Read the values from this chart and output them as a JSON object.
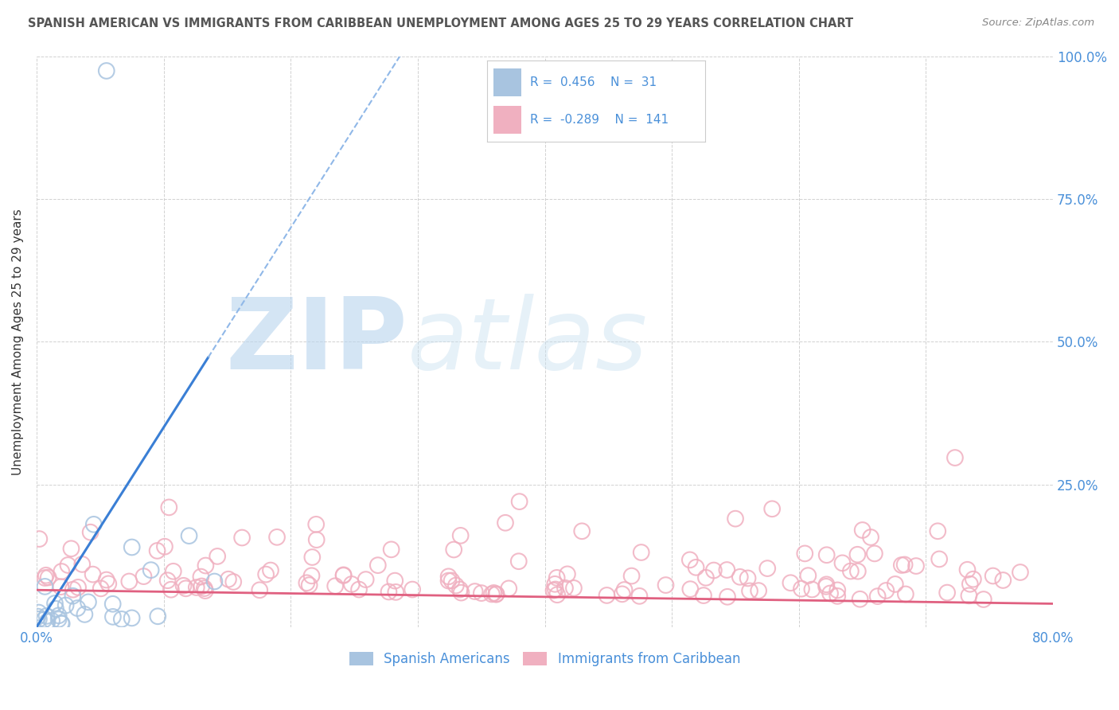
{
  "title": "SPANISH AMERICAN VS IMMIGRANTS FROM CARIBBEAN UNEMPLOYMENT AMONG AGES 25 TO 29 YEARS CORRELATION CHART",
  "source": "Source: ZipAtlas.com",
  "ylabel": "Unemployment Among Ages 25 to 29 years",
  "xlim": [
    0,
    0.8
  ],
  "ylim": [
    0,
    1.0
  ],
  "xticks": [
    0.0,
    0.1,
    0.2,
    0.3,
    0.4,
    0.5,
    0.6,
    0.7,
    0.8
  ],
  "xticklabels": [
    "0.0%",
    "",
    "",
    "",
    "",
    "",
    "",
    "",
    "80.0%"
  ],
  "yticks": [
    0.0,
    0.25,
    0.5,
    0.75,
    1.0
  ],
  "yticklabels_left": [
    "",
    "",
    "",
    "",
    ""
  ],
  "yticklabels_right": [
    "",
    "25.0%",
    "50.0%",
    "75.0%",
    "100.0%"
  ],
  "blue_R": 0.456,
  "blue_N": 31,
  "pink_R": -0.289,
  "pink_N": 141,
  "legend_label_blue": "Spanish Americans",
  "legend_label_pink": "Immigrants from Caribbean",
  "blue_scatter_color": "#a8c4e0",
  "pink_scatter_color": "#f0b0c0",
  "blue_line_color": "#3a7fd5",
  "blue_dash_color": "#90b8e8",
  "pink_line_color": "#e06080",
  "watermark_zip_color": "#b8d4ee",
  "watermark_atlas_color": "#c8e0f0",
  "background_color": "#ffffff",
  "grid_color": "#cccccc",
  "title_color": "#555555",
  "axis_label_color": "#4a90d9",
  "legend_text_color": "#4a90d9",
  "legend_box_color": "#f5f5f5",
  "legend_border_color": "#cccccc"
}
